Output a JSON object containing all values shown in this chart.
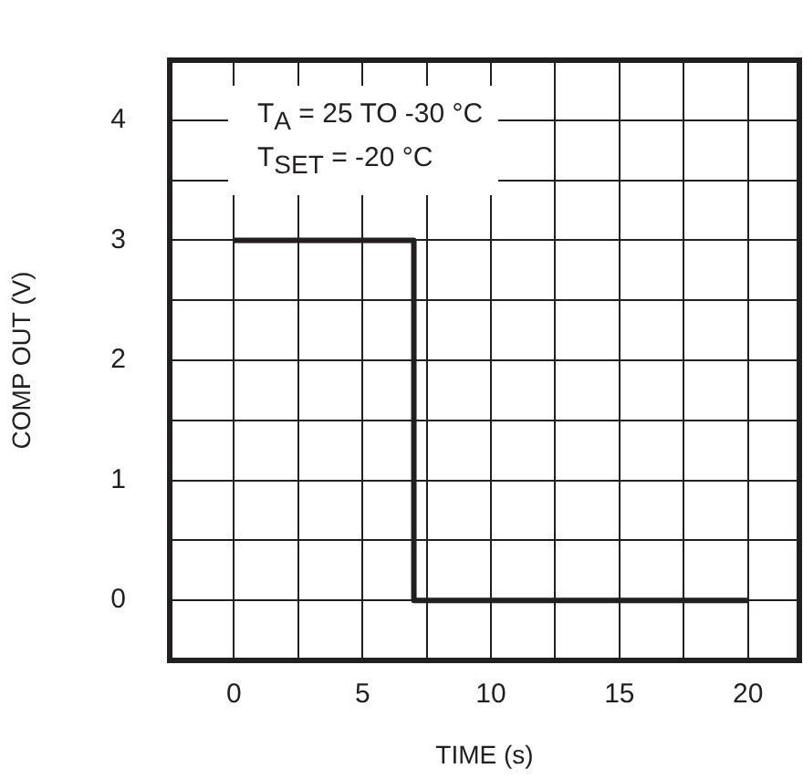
{
  "chart_data": {
    "type": "step",
    "xlabel": "TIME (s)",
    "ylabel": "COMP OUT (V)",
    "annotations": [
      "T$_{A}$ = 25 TO -30 °C",
      "T$_{SET}$ = -20 °C"
    ],
    "x": [
      0,
      7,
      20
    ],
    "series": [
      {
        "color": "#231f20",
        "values": [
          3,
          0,
          0
        ]
      }
    ],
    "xlim": [
      -2.5,
      22
    ],
    "xticks": [
      0,
      {
        "value": 2.5,
        "label": null
      },
      5,
      {
        "value": 7.5,
        "label": null
      },
      10,
      {
        "value": 12.5,
        "label": null
      },
      15,
      {
        "value": 17.5,
        "label": null
      },
      20
    ],
    "ylim": [
      -0.5,
      4.5
    ],
    "yticks": [
      0,
      {
        "value": 0.5,
        "label": null
      },
      1,
      {
        "value": 1.5,
        "label": null
      },
      2,
      {
        "value": 2.5,
        "label": null
      },
      3,
      {
        "value": 3.5,
        "label": null
      },
      4
    ],
    "grid": true,
    "legend": false
  }
}
